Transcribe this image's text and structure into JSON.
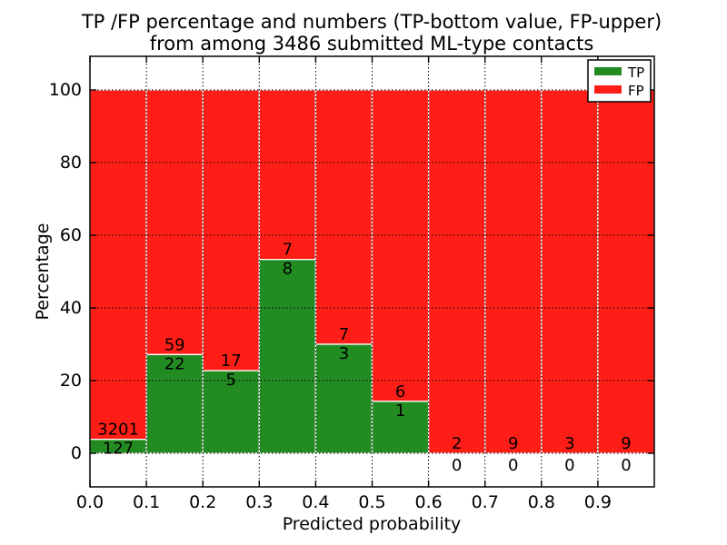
{
  "title": {
    "line1": "TP /FP percentage and numbers (TP-bottom value, FP-upper)",
    "line2": "from among 3486 submitted ML-type contacts"
  },
  "chart_data": {
    "type": "bar",
    "subtype": "stacked-percentage-histogram",
    "title": "TP /FP percentage and numbers (TP-bottom value, FP-upper) from among 3486 submitted ML-type contacts",
    "xlabel": "Predicted probability",
    "ylabel": "Percentage",
    "total_submitted": 3486,
    "bin_edges": [
      0.0,
      0.1,
      0.2,
      0.3,
      0.4,
      0.5,
      0.6,
      0.7,
      0.8,
      0.9,
      1.0
    ],
    "x_tick_values": [
      0.0,
      0.1,
      0.2,
      0.3,
      0.4,
      0.5,
      0.6,
      0.7,
      0.8,
      0.9
    ],
    "x_tick_labels": [
      "0.0",
      "0.1",
      "0.2",
      "0.3",
      "0.4",
      "0.5",
      "0.6",
      "0.7",
      "0.8",
      "0.9"
    ],
    "y_tick_values": [
      0,
      20,
      40,
      60,
      80,
      100
    ],
    "y_tick_labels": [
      "0",
      "20",
      "40",
      "60",
      "80",
      "100"
    ],
    "xlim": [
      0.0,
      1.0
    ],
    "ylim": [
      -9.25,
      109.25
    ],
    "grid": "dotted",
    "legend_position": "upper right",
    "series": [
      {
        "name": "TP",
        "color": "#228b22",
        "counts": [
          127,
          22,
          5,
          8,
          3,
          1,
          0,
          0,
          0,
          0
        ]
      },
      {
        "name": "FP",
        "color": "#ff1e17",
        "counts": [
          3201,
          59,
          17,
          7,
          7,
          6,
          2,
          9,
          3,
          9
        ]
      }
    ],
    "tp_percent_of_bin": [
      3.8,
      27.2,
      22.7,
      53.3,
      30.0,
      14.3,
      0.0,
      0.0,
      0.0,
      0.0
    ],
    "bar_top_percent": 100
  },
  "colors": {
    "tp_green": "#228b22",
    "fp_red": "#ff1e17",
    "grid_line": "#000000",
    "bar_edge": "#ffffff",
    "background": "#ffffff",
    "frame": "#000000"
  }
}
